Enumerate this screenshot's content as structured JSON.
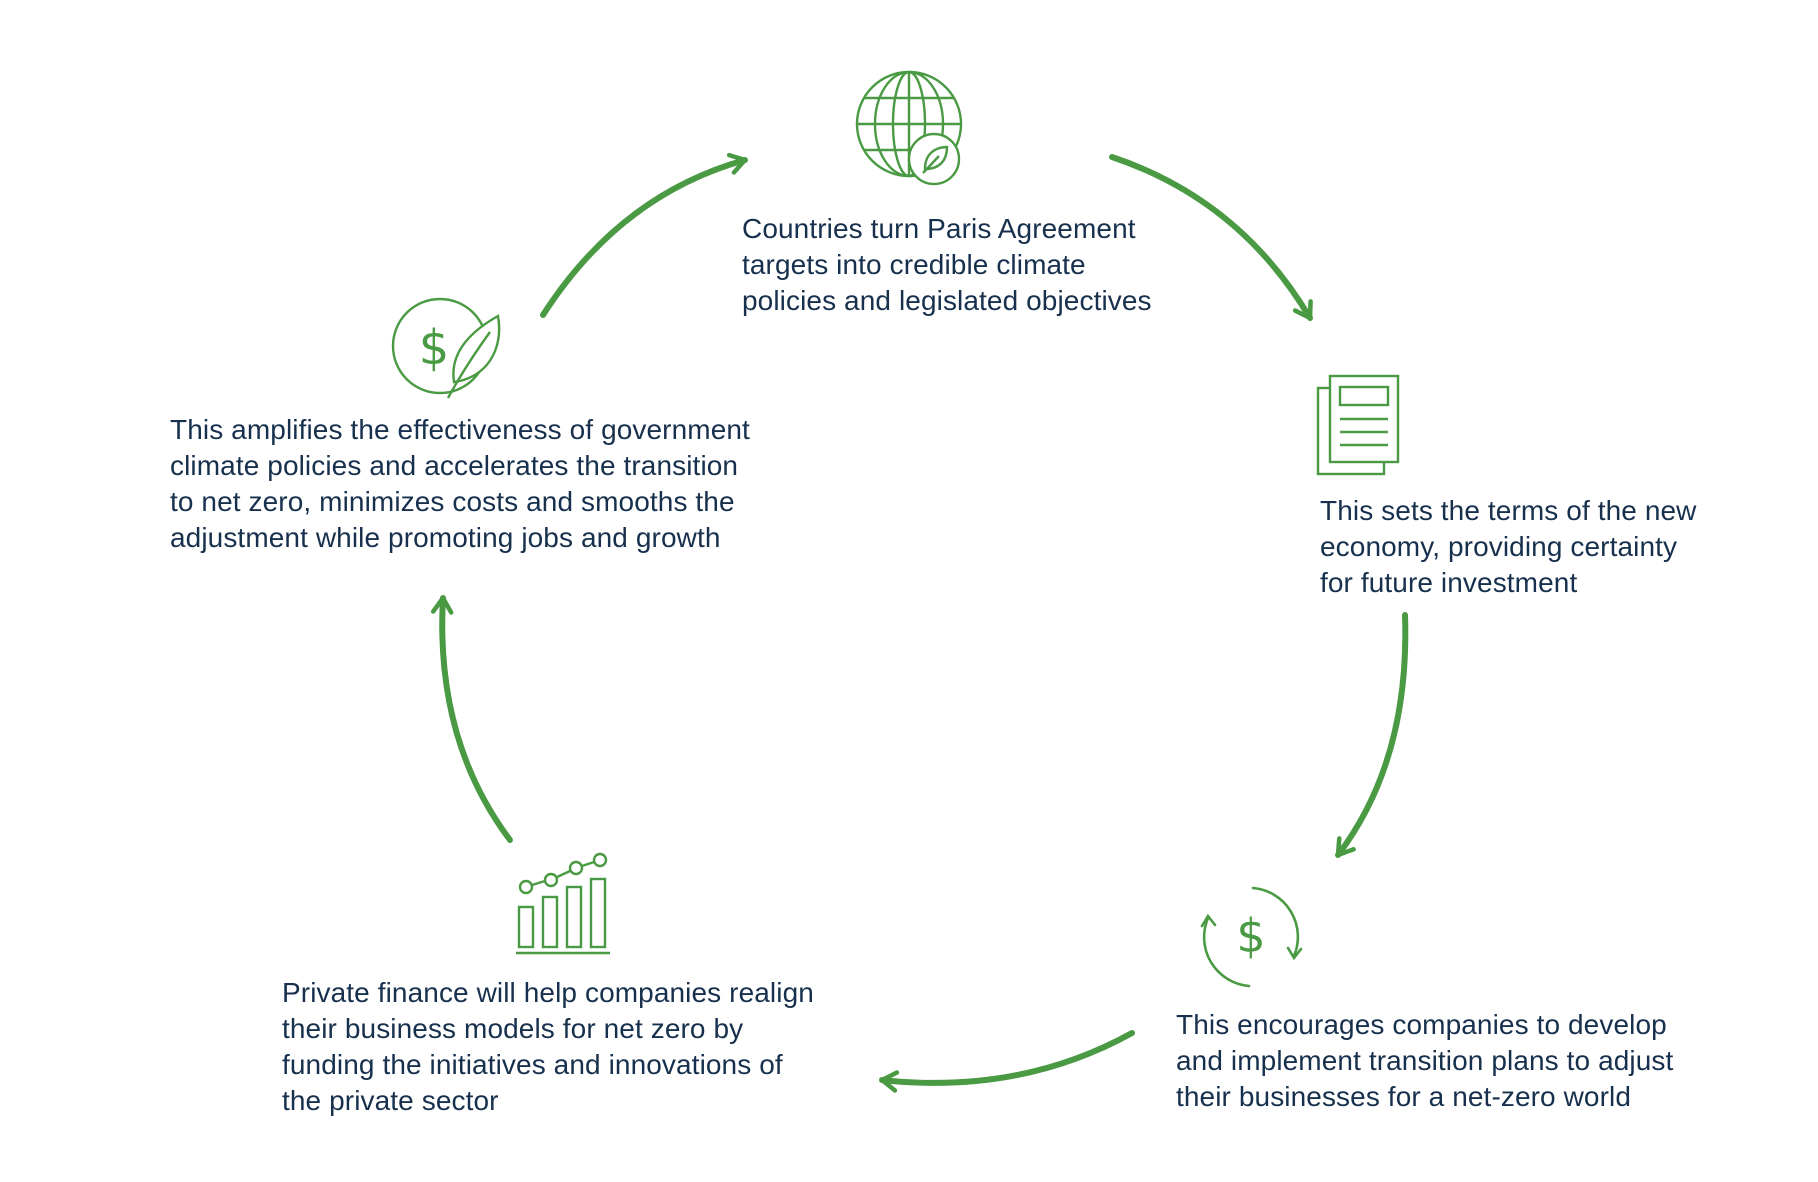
{
  "colors": {
    "accent": "#4a9a43",
    "text": "#17304d",
    "background": "#ffffff"
  },
  "steps": [
    {
      "icon": "globe-leaf-icon",
      "lines": [
        "Countries turn Paris Agreement",
        "targets into credible climate",
        "policies and legislated objectives"
      ]
    },
    {
      "icon": "document-icon",
      "lines": [
        "This sets the terms of the new",
        "economy, providing certainty",
        "for future investment"
      ]
    },
    {
      "icon": "dollar-cycle-icon",
      "lines": [
        "This encourages companies to develop",
        "and implement transition plans to adjust",
        "their businesses for a net-zero world"
      ]
    },
    {
      "icon": "growth-chart-icon",
      "lines": [
        "Private finance will help companies realign",
        "their business models for net zero by",
        "funding the initiatives and innovations of",
        "the private sector"
      ]
    },
    {
      "icon": "dollar-leaf-icon",
      "lines": [
        "This amplifies the effectiveness of government",
        "climate policies and accelerates the transition",
        "to net zero, minimizes costs and smooths the",
        "adjustment while promoting jobs and growth"
      ]
    }
  ]
}
